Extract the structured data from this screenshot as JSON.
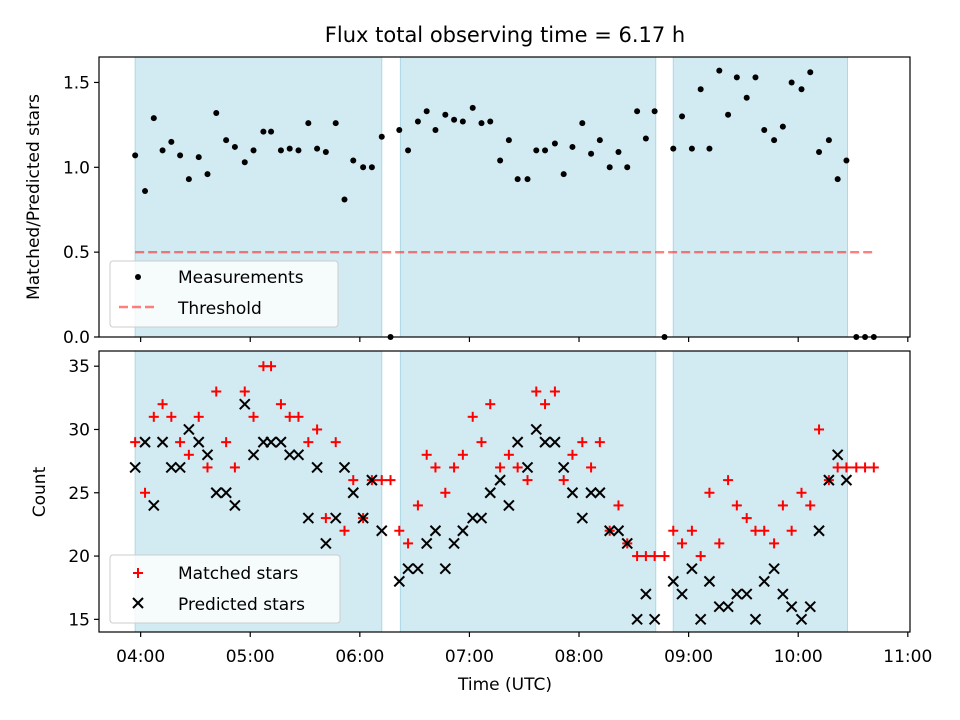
{
  "chart_data": {
    "type": "scatter",
    "title": "Flux total observing time = 6.17 h",
    "xlabel": "Time (UTC)",
    "xticks": [
      "04:00",
      "05:00",
      "06:00",
      "07:00",
      "08:00",
      "09:00",
      "10:00",
      "11:00"
    ],
    "xlim_hours": [
      3.62,
      11.02
    ],
    "observing_windows": [
      [
        3.95,
        6.2
      ],
      [
        6.37,
        8.7
      ],
      [
        8.86,
        10.45
      ]
    ],
    "window_color": "#add8e6",
    "top_panel": {
      "ylabel": "Matched/Predicted stars",
      "ylim": [
        0,
        1.65
      ],
      "yticks": [
        "0.0",
        "0.5",
        "1.0",
        "1.5"
      ],
      "threshold": {
        "name": "Threshold",
        "value": 0.5,
        "x_range": [
          3.95,
          10.7
        ],
        "color": "#ff0000"
      },
      "series": [
        {
          "name": "Measurements",
          "color": "#000000",
          "x": [
            3.95,
            4.04,
            4.12,
            4.2,
            4.28,
            4.36,
            4.44,
            4.53,
            4.61,
            4.69,
            4.78,
            4.86,
            4.95,
            5.03,
            5.12,
            5.19,
            5.28,
            5.36,
            5.44,
            5.53,
            5.61,
            5.69,
            5.78,
            5.86,
            5.94,
            6.03,
            6.11,
            6.2,
            6.28,
            6.36,
            6.44,
            6.53,
            6.61,
            6.69,
            6.78,
            6.86,
            6.94,
            7.03,
            7.11,
            7.19,
            7.28,
            7.36,
            7.44,
            7.53,
            7.61,
            7.69,
            7.78,
            7.86,
            7.94,
            8.03,
            8.11,
            8.19,
            8.28,
            8.36,
            8.44,
            8.53,
            8.61,
            8.69,
            8.78,
            8.86,
            8.94,
            9.03,
            9.11,
            9.19,
            9.28,
            9.36,
            9.44,
            9.53,
            9.61,
            9.69,
            9.78,
            9.86,
            9.94,
            10.03,
            10.11,
            10.19,
            10.28,
            10.36,
            10.44,
            10.53,
            10.61,
            10.69
          ],
          "y": [
            1.07,
            0.86,
            1.29,
            1.1,
            1.15,
            1.07,
            0.93,
            1.06,
            0.96,
            1.32,
            1.16,
            1.12,
            1.03,
            1.1,
            1.21,
            1.21,
            1.1,
            1.11,
            1.1,
            1.26,
            1.11,
            1.09,
            1.26,
            0.81,
            1.04,
            1.0,
            1.0,
            1.18,
            0.0,
            1.22,
            1.1,
            1.27,
            1.33,
            1.22,
            1.31,
            1.28,
            1.27,
            1.35,
            1.26,
            1.27,
            1.04,
            1.16,
            0.93,
            0.93,
            1.1,
            1.1,
            1.14,
            0.96,
            1.12,
            1.26,
            1.08,
            1.16,
            1.0,
            1.09,
            1.0,
            1.33,
            1.17,
            1.33,
            0.0,
            1.11,
            1.3,
            1.11,
            1.46,
            1.11,
            1.57,
            1.31,
            1.53,
            1.41,
            1.53,
            1.22,
            1.16,
            1.24,
            1.5,
            1.46,
            1.56,
            1.09,
            1.16,
            0.93,
            1.04,
            0.0,
            0.0,
            0.0
          ]
        }
      ]
    },
    "bottom_panel": {
      "ylabel": "Count",
      "ylim": [
        14,
        36.2
      ],
      "yticks": [
        "15",
        "20",
        "25",
        "30",
        "35"
      ],
      "series": [
        {
          "name": "Matched stars",
          "color": "#ff0000",
          "x": [
            3.95,
            4.04,
            4.12,
            4.2,
            4.28,
            4.36,
            4.44,
            4.53,
            4.61,
            4.69,
            4.78,
            4.86,
            4.95,
            5.03,
            5.12,
            5.19,
            5.28,
            5.36,
            5.44,
            5.53,
            5.61,
            5.69,
            5.78,
            5.86,
            5.94,
            6.03,
            6.11,
            6.2,
            6.28,
            6.36,
            6.44,
            6.53,
            6.61,
            6.69,
            6.78,
            6.86,
            6.94,
            7.03,
            7.11,
            7.19,
            7.28,
            7.36,
            7.44,
            7.53,
            7.61,
            7.69,
            7.78,
            7.86,
            7.94,
            8.03,
            8.11,
            8.19,
            8.28,
            8.36,
            8.44,
            8.53,
            8.61,
            8.69,
            8.78,
            8.86,
            8.94,
            9.03,
            9.11,
            9.19,
            9.28,
            9.36,
            9.44,
            9.53,
            9.61,
            9.69,
            9.78,
            9.86,
            9.94,
            10.03,
            10.11,
            10.19,
            10.28,
            10.36,
            10.44,
            10.53,
            10.61,
            10.69
          ],
          "y": [
            29,
            25,
            31,
            32,
            31,
            29,
            28,
            31,
            27,
            33,
            29,
            27,
            33,
            31,
            35,
            35,
            32,
            31,
            31,
            29,
            30,
            23,
            29,
            22,
            26,
            23,
            26,
            26,
            26,
            22,
            21,
            24,
            28,
            27,
            25,
            27,
            28,
            31,
            29,
            32,
            27,
            28,
            27,
            26,
            33,
            32,
            33,
            26,
            28,
            29,
            27,
            29,
            22,
            24,
            21,
            20,
            20,
            20,
            20,
            22,
            21,
            22,
            20,
            25,
            21,
            26,
            24,
            23,
            22,
            22,
            21,
            24,
            22,
            25,
            24,
            30,
            26,
            27,
            27,
            27,
            27,
            27
          ]
        },
        {
          "name": "Predicted stars",
          "color": "#000000",
          "x": [
            3.95,
            4.04,
            4.12,
            4.2,
            4.28,
            4.36,
            4.44,
            4.53,
            4.61,
            4.69,
            4.78,
            4.86,
            4.95,
            5.03,
            5.12,
            5.19,
            5.28,
            5.36,
            5.44,
            5.53,
            5.61,
            5.69,
            5.78,
            5.86,
            5.94,
            6.03,
            6.11,
            6.2,
            6.36,
            6.44,
            6.53,
            6.61,
            6.69,
            6.78,
            6.86,
            6.94,
            7.03,
            7.11,
            7.19,
            7.28,
            7.36,
            7.44,
            7.53,
            7.61,
            7.69,
            7.78,
            7.86,
            7.94,
            8.03,
            8.11,
            8.19,
            8.28,
            8.36,
            8.44,
            8.53,
            8.61,
            8.69,
            8.86,
            8.94,
            9.03,
            9.11,
            9.19,
            9.28,
            9.36,
            9.44,
            9.53,
            9.61,
            9.69,
            9.78,
            9.86,
            9.94,
            10.03,
            10.11,
            10.19,
            10.28,
            10.36,
            10.44
          ],
          "y": [
            27,
            29,
            24,
            29,
            27,
            27,
            30,
            29,
            28,
            25,
            25,
            24,
            32,
            28,
            29,
            29,
            29,
            28,
            28,
            23,
            27,
            21,
            23,
            27,
            25,
            23,
            26,
            22,
            18,
            19,
            19,
            21,
            22,
            19,
            21,
            22,
            23,
            23,
            25,
            26,
            24,
            29,
            27,
            30,
            29,
            29,
            27,
            25,
            23,
            25,
            25,
            22,
            22,
            21,
            15,
            17,
            15,
            18,
            17,
            19,
            15,
            18,
            16,
            16,
            17,
            17,
            15,
            18,
            19,
            17,
            16,
            15,
            16,
            22,
            26,
            28,
            26
          ]
        }
      ]
    }
  }
}
